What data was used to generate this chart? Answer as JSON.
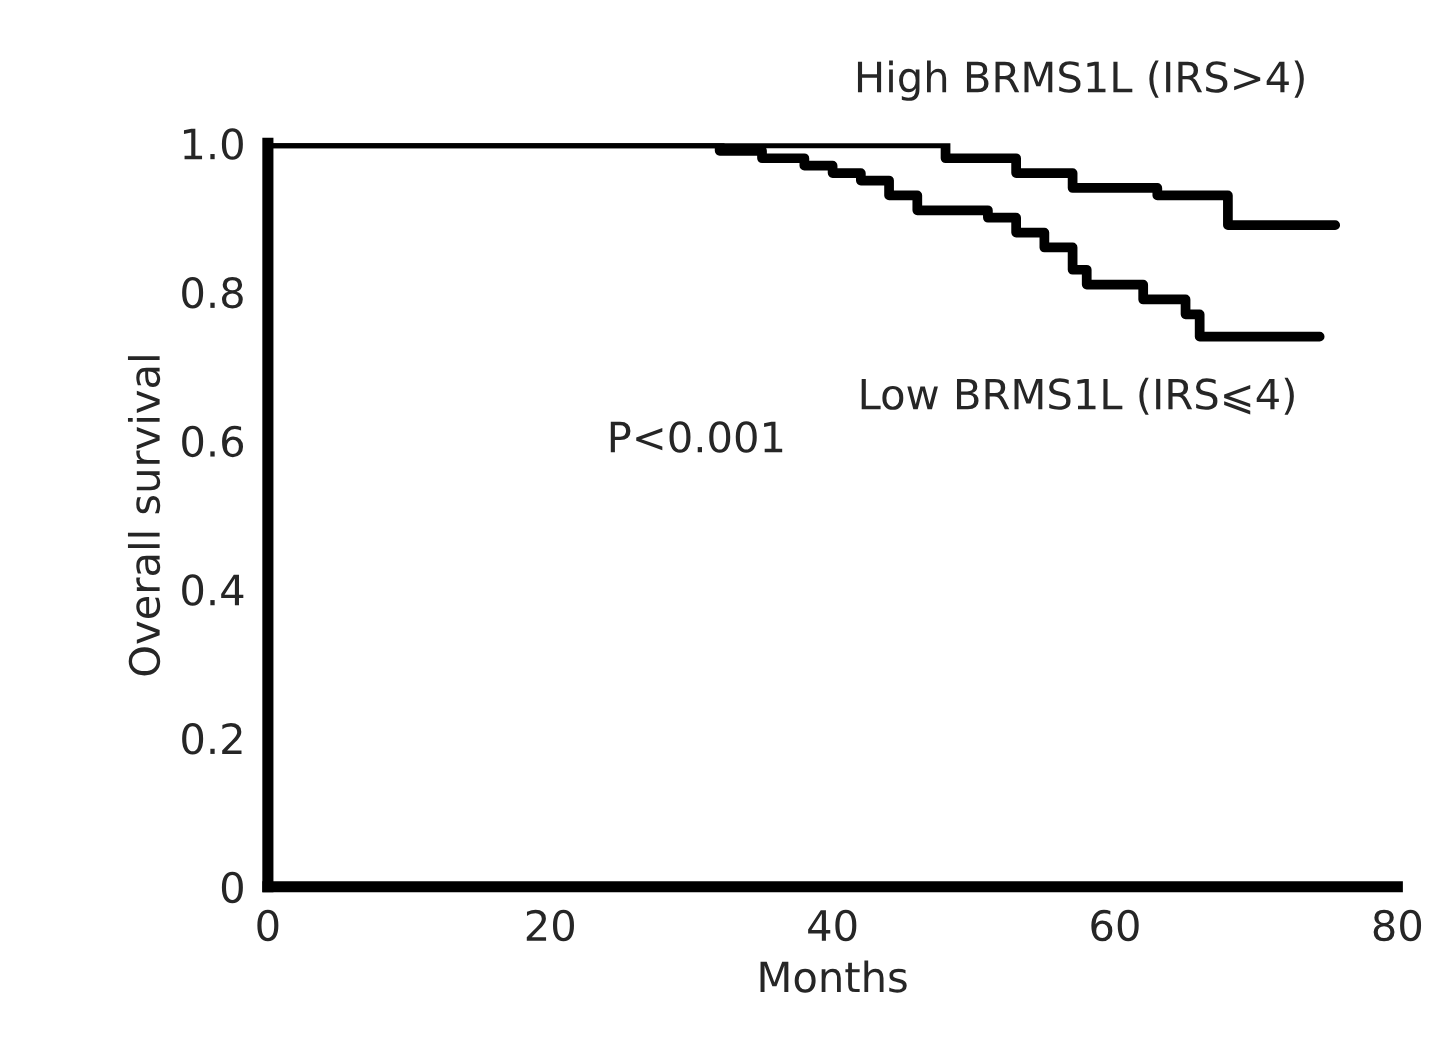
{
  "chart_data": {
    "type": "step",
    "xlabel": "Months",
    "ylabel": "Overall survival",
    "xlim": [
      0,
      80
    ],
    "xticks": [
      0,
      20,
      40,
      60,
      80
    ],
    "ylim": [
      0,
      1.0
    ],
    "yticks": [
      {
        "value": 0,
        "label": "0"
      },
      {
        "value": 0.2,
        "label": "0.2"
      },
      {
        "value": 0.4,
        "label": "0.4"
      },
      {
        "value": 0.6,
        "label": "0.6"
      },
      {
        "value": 0.8,
        "label": "0.8"
      },
      {
        "value": 1.0,
        "label": "1.0"
      }
    ],
    "series": [
      {
        "name": "High BRMS1L (IRS>4)",
        "color": "#000000",
        "x": [
          0,
          47,
          48,
          53,
          57,
          63,
          68,
          75.6
        ],
        "values": [
          1.0,
          1.0,
          0.98,
          0.96,
          0.94,
          0.93,
          0.89,
          0.89
        ]
      },
      {
        "name": "Low BRMS1L (IRS⩽4)",
        "color": "#000000",
        "x": [
          0,
          30,
          32,
          35,
          38,
          40,
          42,
          44,
          46,
          51,
          53,
          55,
          57,
          58,
          62,
          65,
          66,
          74.5
        ],
        "values": [
          1.0,
          1.0,
          0.99,
          0.98,
          0.97,
          0.96,
          0.95,
          0.93,
          0.91,
          0.9,
          0.88,
          0.86,
          0.83,
          0.81,
          0.79,
          0.77,
          0.74,
          0.74
        ]
      }
    ],
    "annotations": [
      "P<0.001"
    ]
  }
}
